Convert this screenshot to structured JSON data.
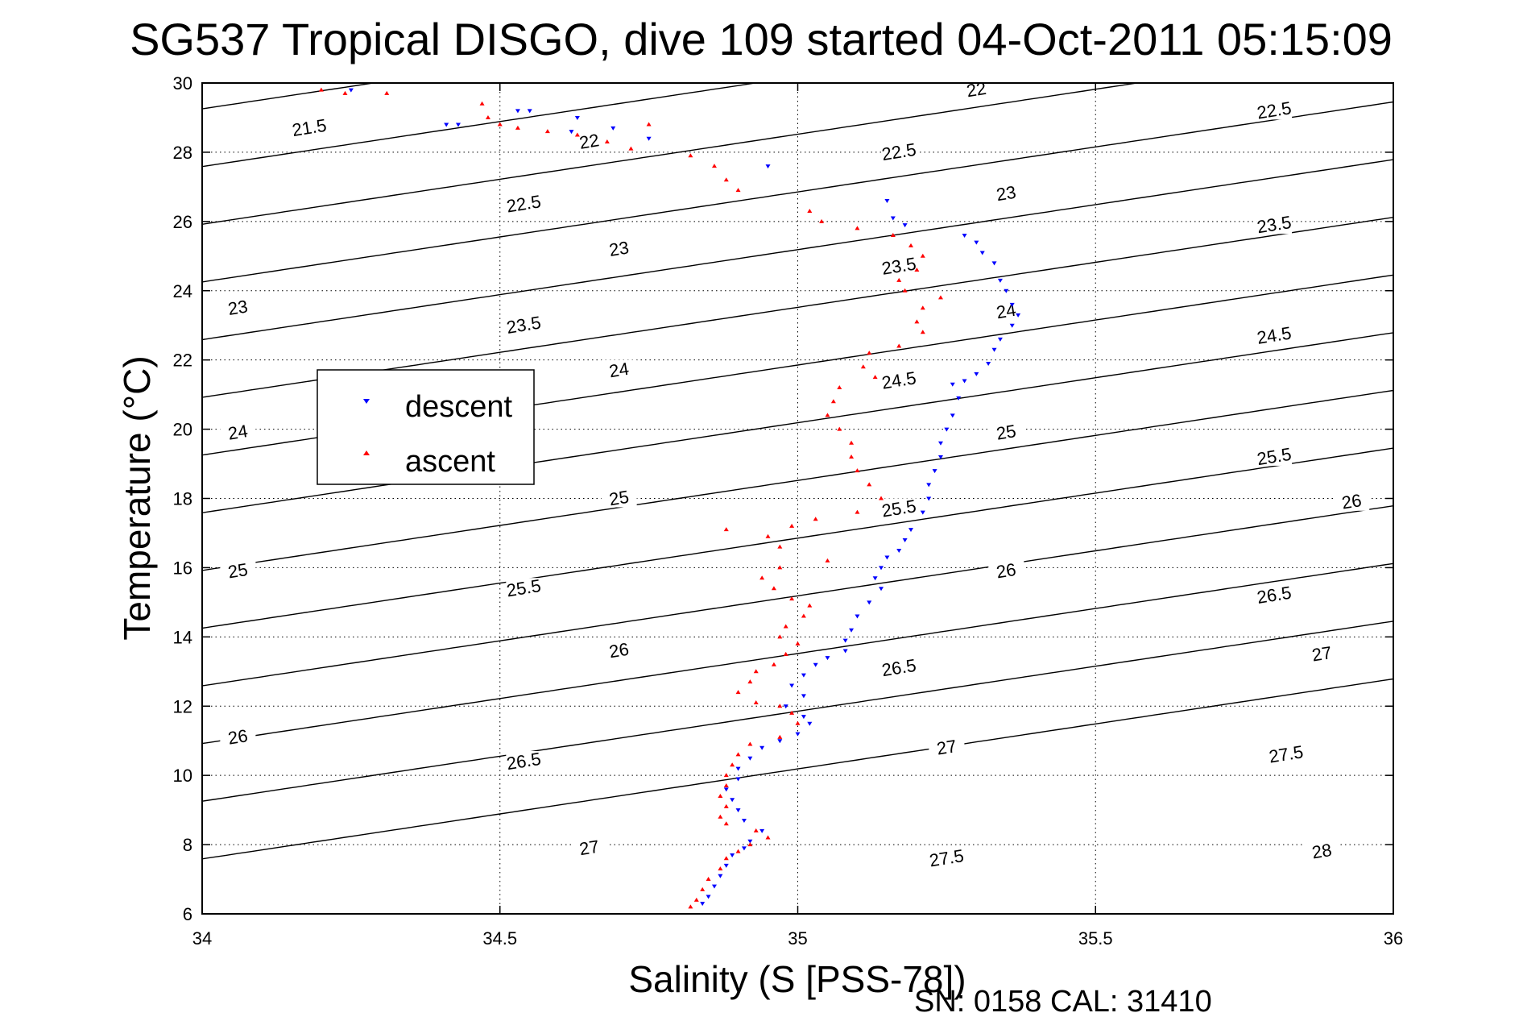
{
  "chart_data": {
    "type": "scatter",
    "title": "SG537 Tropical DISGO, dive 109 started 04-Oct-2011 05:15:09",
    "xlabel": "Salinity (S [PSS-78])",
    "ylabel": "Temperature (°C)",
    "xlim": [
      34,
      36
    ],
    "ylim": [
      6,
      30
    ],
    "xticks": [
      "34",
      "34.5",
      "35",
      "35.5",
      "36"
    ],
    "yticks": [
      "6",
      "8",
      "10",
      "12",
      "14",
      "16",
      "18",
      "20",
      "22",
      "24",
      "26",
      "28",
      "30"
    ],
    "grid": true,
    "legend_position": "left",
    "colors": {
      "descent": "#0000ff",
      "ascent": "#ff0000",
      "contour": "#000000"
    },
    "footnote": "SN: 0158  CAL: 31410",
    "contours": {
      "levels": [
        21.5,
        22,
        22.5,
        23,
        23.5,
        24,
        24.5,
        25,
        25.5,
        26,
        26.5,
        27,
        27.5,
        28
      ],
      "labels": [
        {
          "text": "21.5",
          "x": 34.18,
          "y": 28.7
        },
        {
          "text": "22",
          "x": 34.65,
          "y": 28.3
        },
        {
          "text": "22",
          "x": 35.3,
          "y": 29.8
        },
        {
          "text": "22.5",
          "x": 35.8,
          "y": 29.2
        },
        {
          "text": "22.5",
          "x": 34.54,
          "y": 26.5
        },
        {
          "text": "22.5",
          "x": 35.17,
          "y": 28.0
        },
        {
          "text": "23",
          "x": 34.06,
          "y": 23.5
        },
        {
          "text": "23",
          "x": 34.7,
          "y": 25.2
        },
        {
          "text": "23",
          "x": 35.35,
          "y": 26.8
        },
        {
          "text": "23.5",
          "x": 35.8,
          "y": 25.9
        },
        {
          "text": "23.5",
          "x": 34.54,
          "y": 23.0
        },
        {
          "text": "23.5",
          "x": 35.17,
          "y": 24.7
        },
        {
          "text": "24",
          "x": 34.06,
          "y": 19.9
        },
        {
          "text": "24",
          "x": 34.7,
          "y": 21.7
        },
        {
          "text": "24",
          "x": 35.35,
          "y": 23.4
        },
        {
          "text": "24.5",
          "x": 35.8,
          "y": 22.7
        },
        {
          "text": "24.5",
          "x": 35.17,
          "y": 21.4
        },
        {
          "text": "25",
          "x": 34.06,
          "y": 15.9
        },
        {
          "text": "25",
          "x": 34.7,
          "y": 18.0
        },
        {
          "text": "25",
          "x": 35.35,
          "y": 19.9
        },
        {
          "text": "25.5",
          "x": 35.8,
          "y": 19.2
        },
        {
          "text": "25.5",
          "x": 34.54,
          "y": 15.4
        },
        {
          "text": "25.5",
          "x": 35.17,
          "y": 17.7
        },
        {
          "text": "26",
          "x": 34.06,
          "y": 11.1
        },
        {
          "text": "26",
          "x": 34.7,
          "y": 13.6
        },
        {
          "text": "26",
          "x": 35.35,
          "y": 15.9
        },
        {
          "text": "26",
          "x": 35.93,
          "y": 17.9
        },
        {
          "text": "26.5",
          "x": 35.8,
          "y": 15.2
        },
        {
          "text": "26.5",
          "x": 34.54,
          "y": 10.4
        },
        {
          "text": "26.5",
          "x": 35.17,
          "y": 13.1
        },
        {
          "text": "27",
          "x": 34.65,
          "y": 7.9
        },
        {
          "text": "27",
          "x": 35.25,
          "y": 10.8
        },
        {
          "text": "27",
          "x": 35.88,
          "y": 13.5
        },
        {
          "text": "27.5",
          "x": 35.25,
          "y": 7.6
        },
        {
          "text": "27.5",
          "x": 35.82,
          "y": 10.6
        },
        {
          "text": "28",
          "x": 35.88,
          "y": 7.8
        }
      ]
    },
    "series": [
      {
        "name": "descent",
        "marker": "triangle-down",
        "points": [
          [
            34.25,
            29.8
          ],
          [
            34.41,
            28.8
          ],
          [
            34.43,
            28.8
          ],
          [
            34.53,
            29.2
          ],
          [
            34.55,
            29.2
          ],
          [
            34.62,
            28.6
          ],
          [
            34.63,
            29.0
          ],
          [
            34.69,
            28.7
          ],
          [
            34.75,
            28.4
          ],
          [
            34.95,
            27.6
          ],
          [
            35.15,
            26.6
          ],
          [
            35.16,
            26.1
          ],
          [
            35.18,
            25.9
          ],
          [
            35.28,
            25.6
          ],
          [
            35.3,
            25.4
          ],
          [
            35.31,
            25.1
          ],
          [
            35.33,
            24.8
          ],
          [
            35.34,
            24.3
          ],
          [
            35.35,
            24.0
          ],
          [
            35.36,
            23.6
          ],
          [
            35.37,
            23.3
          ],
          [
            35.36,
            23.0
          ],
          [
            35.34,
            22.6
          ],
          [
            35.33,
            22.3
          ],
          [
            35.32,
            21.9
          ],
          [
            35.3,
            21.6
          ],
          [
            35.28,
            21.4
          ],
          [
            35.26,
            21.3
          ],
          [
            35.27,
            20.9
          ],
          [
            35.26,
            20.4
          ],
          [
            35.25,
            20.0
          ],
          [
            35.24,
            19.6
          ],
          [
            35.24,
            19.2
          ],
          [
            35.23,
            18.8
          ],
          [
            35.22,
            18.4
          ],
          [
            35.22,
            18.0
          ],
          [
            35.21,
            17.6
          ],
          [
            35.19,
            17.1
          ],
          [
            35.18,
            16.8
          ],
          [
            35.17,
            16.5
          ],
          [
            35.15,
            16.3
          ],
          [
            35.14,
            16.0
          ],
          [
            35.13,
            15.7
          ],
          [
            35.14,
            15.4
          ],
          [
            35.12,
            15.0
          ],
          [
            35.1,
            14.6
          ],
          [
            35.09,
            14.2
          ],
          [
            35.08,
            13.9
          ],
          [
            35.08,
            13.6
          ],
          [
            35.05,
            13.4
          ],
          [
            35.03,
            13.2
          ],
          [
            35.01,
            12.9
          ],
          [
            34.99,
            12.6
          ],
          [
            35.01,
            12.3
          ],
          [
            34.98,
            12.0
          ],
          [
            35.01,
            11.7
          ],
          [
            35.02,
            11.5
          ],
          [
            35.0,
            11.2
          ],
          [
            34.97,
            11.0
          ],
          [
            34.94,
            10.8
          ],
          [
            34.92,
            10.5
          ],
          [
            34.9,
            10.2
          ],
          [
            34.9,
            9.9
          ],
          [
            34.88,
            9.6
          ],
          [
            34.89,
            9.3
          ],
          [
            34.9,
            9.0
          ],
          [
            34.91,
            8.7
          ],
          [
            34.94,
            8.4
          ],
          [
            34.92,
            8.1
          ],
          [
            34.91,
            7.9
          ],
          [
            34.89,
            7.7
          ],
          [
            34.88,
            7.4
          ],
          [
            34.87,
            7.1
          ],
          [
            34.86,
            6.8
          ],
          [
            34.85,
            6.5
          ],
          [
            34.84,
            6.3
          ]
        ]
      },
      {
        "name": "ascent",
        "marker": "triangle-up",
        "points": [
          [
            34.2,
            29.8
          ],
          [
            34.24,
            29.7
          ],
          [
            34.31,
            29.7
          ],
          [
            34.47,
            29.4
          ],
          [
            34.48,
            29.0
          ],
          [
            34.5,
            28.8
          ],
          [
            34.53,
            28.7
          ],
          [
            34.58,
            28.6
          ],
          [
            34.63,
            28.5
          ],
          [
            34.68,
            28.3
          ],
          [
            34.72,
            28.1
          ],
          [
            34.75,
            28.8
          ],
          [
            34.82,
            27.9
          ],
          [
            34.86,
            27.6
          ],
          [
            34.88,
            27.2
          ],
          [
            34.9,
            26.9
          ],
          [
            35.02,
            26.3
          ],
          [
            35.04,
            26.0
          ],
          [
            35.1,
            25.8
          ],
          [
            35.16,
            25.6
          ],
          [
            35.19,
            25.3
          ],
          [
            35.21,
            25.0
          ],
          [
            35.2,
            24.6
          ],
          [
            35.17,
            24.3
          ],
          [
            35.18,
            24.0
          ],
          [
            35.24,
            23.8
          ],
          [
            35.21,
            23.5
          ],
          [
            35.2,
            23.1
          ],
          [
            35.21,
            22.8
          ],
          [
            35.17,
            22.4
          ],
          [
            35.12,
            22.2
          ],
          [
            35.11,
            21.8
          ],
          [
            35.13,
            21.5
          ],
          [
            35.07,
            21.2
          ],
          [
            35.06,
            20.8
          ],
          [
            35.05,
            20.4
          ],
          [
            35.07,
            20.0
          ],
          [
            35.09,
            19.6
          ],
          [
            35.09,
            19.2
          ],
          [
            35.1,
            18.8
          ],
          [
            35.12,
            18.4
          ],
          [
            35.14,
            18.0
          ],
          [
            35.1,
            17.6
          ],
          [
            35.03,
            17.4
          ],
          [
            34.99,
            17.2
          ],
          [
            34.88,
            17.1
          ],
          [
            34.95,
            16.9
          ],
          [
            34.97,
            16.6
          ],
          [
            35.05,
            16.2
          ],
          [
            34.97,
            16.0
          ],
          [
            34.94,
            15.7
          ],
          [
            34.96,
            15.4
          ],
          [
            34.99,
            15.1
          ],
          [
            35.02,
            14.9
          ],
          [
            35.01,
            14.6
          ],
          [
            34.98,
            14.3
          ],
          [
            34.97,
            14.0
          ],
          [
            35.0,
            13.8
          ],
          [
            34.98,
            13.5
          ],
          [
            34.96,
            13.2
          ],
          [
            34.93,
            13.0
          ],
          [
            34.92,
            12.7
          ],
          [
            34.9,
            12.4
          ],
          [
            34.93,
            12.1
          ],
          [
            34.97,
            12.0
          ],
          [
            34.99,
            11.8
          ],
          [
            35.0,
            11.5
          ],
          [
            34.97,
            11.1
          ],
          [
            34.92,
            10.9
          ],
          [
            34.9,
            10.6
          ],
          [
            34.89,
            10.3
          ],
          [
            34.88,
            10.0
          ],
          [
            34.88,
            9.7
          ],
          [
            34.87,
            9.4
          ],
          [
            34.88,
            9.1
          ],
          [
            34.87,
            8.8
          ],
          [
            34.88,
            8.6
          ],
          [
            34.93,
            8.4
          ],
          [
            34.95,
            8.2
          ],
          [
            34.92,
            8.0
          ],
          [
            34.9,
            7.8
          ],
          [
            34.88,
            7.6
          ],
          [
            34.87,
            7.3
          ],
          [
            34.85,
            7.0
          ],
          [
            34.84,
            6.7
          ],
          [
            34.83,
            6.4
          ],
          [
            34.82,
            6.2
          ]
        ]
      }
    ]
  }
}
